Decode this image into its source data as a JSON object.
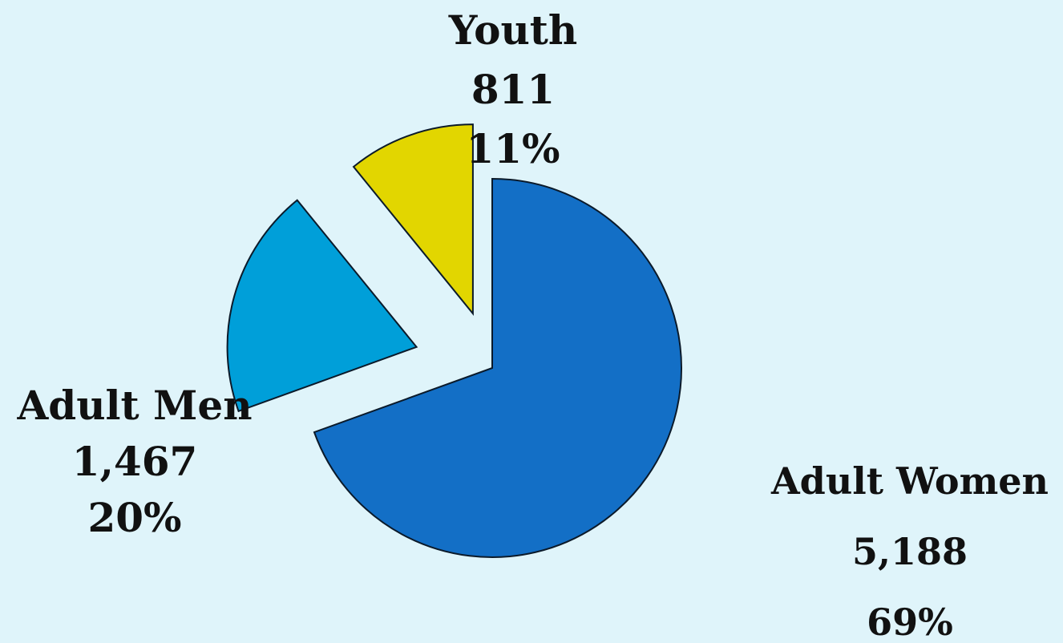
{
  "chart_data": {
    "type": "pie",
    "title": "",
    "slices": [
      {
        "name": "Adult Women",
        "value": 5188,
        "value_label": "5,188",
        "percent_label": "69%",
        "color": "#136fc6",
        "exploded": false
      },
      {
        "name": "Adult Men",
        "value": 1467,
        "value_label": "1,467",
        "percent_label": "20%",
        "color": "#009fd9",
        "exploded": true
      },
      {
        "name": "Youth",
        "value": 811,
        "value_label": "811",
        "percent_label": "11%",
        "color": "#e2d600",
        "exploded": true
      }
    ],
    "background": "#dff4fa",
    "legend": "none"
  }
}
